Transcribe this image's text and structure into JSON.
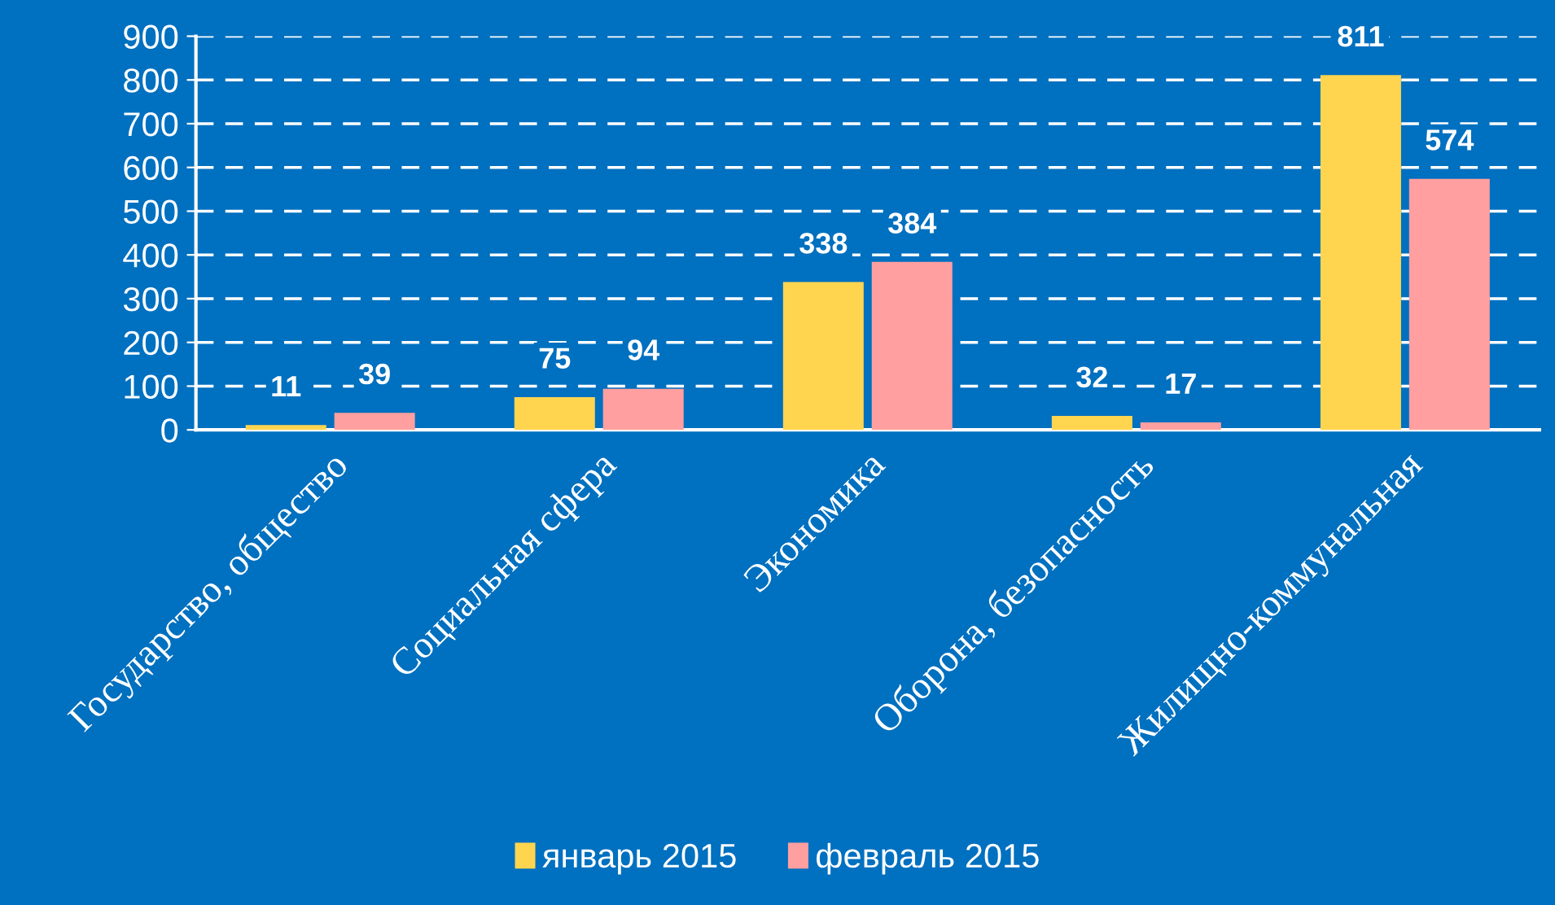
{
  "chart_data": {
    "type": "bar",
    "categories": [
      "Государство, общество",
      "Социальная сфера",
      "Экономика",
      "Оборона, безопасность",
      "Жилищно-коммунальная"
    ],
    "series": [
      {
        "name": "январь 2015",
        "color": "#ffd54f",
        "values": [
          11,
          75,
          338,
          32,
          811
        ]
      },
      {
        "name": "февраль 2015",
        "color": "#ff9f9f",
        "values": [
          39,
          94,
          384,
          17,
          574
        ]
      }
    ],
    "ylim": [
      0,
      900
    ],
    "yticks": [
      0,
      100,
      200,
      300,
      400,
      500,
      600,
      700,
      800,
      900
    ],
    "grid": "y",
    "legend": "bottom",
    "data_labels": true
  }
}
